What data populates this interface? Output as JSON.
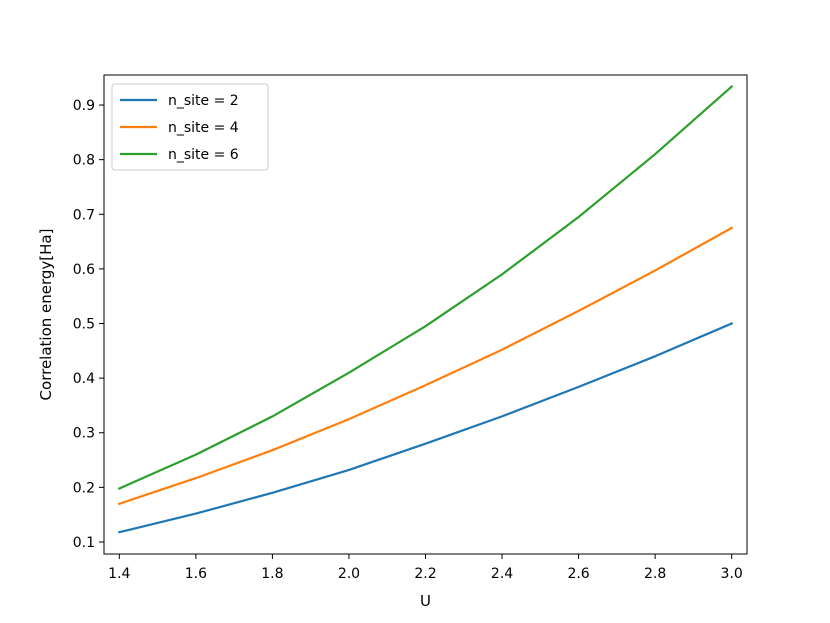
{
  "chart_data": {
    "type": "line",
    "title": "",
    "xlabel": "U",
    "ylabel": "Correlation energy[Ha]",
    "xlim": [
      1.36,
      3.04
    ],
    "ylim": [
      0.078,
      0.955
    ],
    "grid": false,
    "legend_position": "top-left",
    "x_ticks": [
      "1.4",
      "1.6",
      "1.8",
      "2.0",
      "2.2",
      "2.4",
      "2.6",
      "2.8",
      "3.0"
    ],
    "y_ticks": [
      "0.1",
      "0.2",
      "0.3",
      "0.4",
      "0.5",
      "0.6",
      "0.7",
      "0.8",
      "0.9"
    ],
    "x": [
      1.4,
      1.6,
      1.8,
      2.0,
      2.2,
      2.4,
      2.6,
      2.8,
      3.0
    ],
    "series": [
      {
        "name": "n_site = 2",
        "color": "#1f77b4",
        "values": [
          0.118,
          0.152,
          0.19,
          0.232,
          0.28,
          0.33,
          0.384,
          0.44,
          0.5
        ]
      },
      {
        "name": "n_site = 4",
        "color": "#ff7f0e",
        "values": [
          0.17,
          0.217,
          0.268,
          0.325,
          0.387,
          0.452,
          0.523,
          0.597,
          0.675
        ]
      },
      {
        "name": "n_site = 6",
        "color": "#2ca02c",
        "values": [
          0.198,
          0.26,
          0.33,
          0.41,
          0.495,
          0.59,
          0.695,
          0.81,
          0.934
        ]
      }
    ]
  }
}
